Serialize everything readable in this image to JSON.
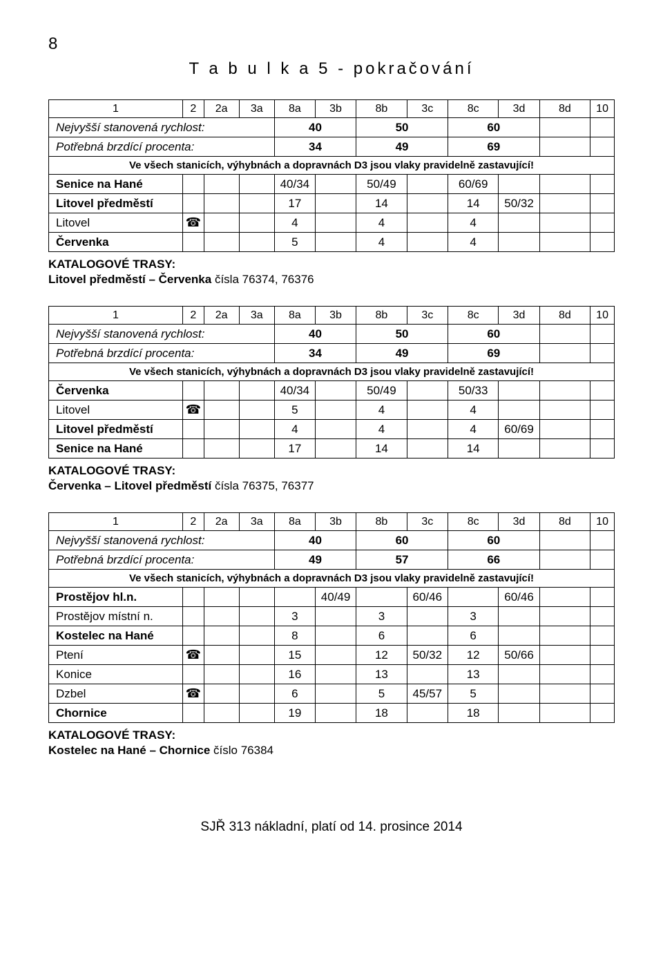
{
  "page_number": "8",
  "page_title": "T a b u l k a  5  -  pokračování",
  "col_headers": [
    "1",
    "2",
    "2a",
    "3a",
    "8a",
    "3b",
    "8b",
    "3c",
    "8c",
    "3d",
    "8d",
    "10"
  ],
  "speed_label": "Nejvyšší stanovená rychlost:",
  "brake_label": "Potřebná brzdící procenta:",
  "note_text": "Ve všech stanicích, výhybnách a dopravnách D3 jsou vlaky pravidelně zastavující!",
  "trasy_heading": "KATALOGOVÉ TRASY:",
  "blocks": [
    {
      "speed": [
        "40",
        "50",
        "60"
      ],
      "brake": [
        "34",
        "49",
        "69"
      ],
      "rows": [
        {
          "name": "Senice na Hané",
          "bold": true,
          "tel": "",
          "c": [
            "",
            "",
            "40/34",
            "",
            "50/49",
            "",
            "60/69",
            "",
            "",
            ""
          ]
        },
        {
          "name": "Litovel předměstí",
          "bold": true,
          "tel": "",
          "c": [
            "",
            "",
            "17",
            "",
            "14",
            "",
            "14",
            "50/32",
            "",
            ""
          ]
        },
        {
          "name": "Litovel",
          "bold": false,
          "tel": "☎",
          "c": [
            "",
            "",
            "4",
            "",
            "4",
            "",
            "4",
            "",
            "",
            ""
          ]
        },
        {
          "name": "Červenka",
          "bold": true,
          "tel": "",
          "c": [
            "",
            "",
            "5",
            "",
            "4",
            "",
            "4",
            "",
            "",
            ""
          ]
        }
      ],
      "trasy": "Litovel předměstí – Červenka čísla 76374, 76376"
    },
    {
      "speed": [
        "40",
        "50",
        "60"
      ],
      "brake": [
        "34",
        "49",
        "69"
      ],
      "rows": [
        {
          "name": "Červenka",
          "bold": true,
          "tel": "",
          "c": [
            "",
            "",
            "40/34",
            "",
            "50/49",
            "",
            "50/33",
            "",
            "",
            ""
          ]
        },
        {
          "name": "Litovel",
          "bold": false,
          "tel": "☎",
          "c": [
            "",
            "",
            "5",
            "",
            "4",
            "",
            "4",
            "",
            "",
            ""
          ]
        },
        {
          "name": "Litovel předměstí",
          "bold": true,
          "tel": "",
          "c": [
            "",
            "",
            "4",
            "",
            "4",
            "",
            "4",
            "60/69",
            "",
            ""
          ]
        },
        {
          "name": "Senice na Hané",
          "bold": true,
          "tel": "",
          "c": [
            "",
            "",
            "17",
            "",
            "14",
            "",
            "14",
            "",
            "",
            ""
          ]
        }
      ],
      "trasy": "Červenka – Litovel předměstí čísla 76375, 76377"
    },
    {
      "speed": [
        "40",
        "60",
        "60"
      ],
      "brake": [
        "49",
        "57",
        "66"
      ],
      "rows": [
        {
          "name": "Prostějov hl.n.",
          "bold": true,
          "tel": "",
          "c": [
            "",
            "",
            "",
            "40/49",
            "",
            "60/46",
            "",
            "60/46",
            "",
            ""
          ]
        },
        {
          "name": "Prostějov místní n.",
          "bold": false,
          "tel": "",
          "c": [
            "",
            "",
            "3",
            "",
            "3",
            "",
            "3",
            "",
            "",
            ""
          ]
        },
        {
          "name": "Kostelec na Hané",
          "bold": true,
          "tel": "",
          "c": [
            "",
            "",
            "8",
            "",
            "6",
            "",
            "6",
            "",
            "",
            ""
          ]
        },
        {
          "name": "Ptení",
          "bold": false,
          "tel": "☎",
          "c": [
            "",
            "",
            "15",
            "",
            "12",
            "50/32",
            "12",
            "50/66",
            "",
            ""
          ]
        },
        {
          "name": "Konice",
          "bold": false,
          "tel": "",
          "c": [
            "",
            "",
            "16",
            "",
            "13",
            "",
            "13",
            "",
            "",
            ""
          ]
        },
        {
          "name": "Dzbel",
          "bold": false,
          "tel": "☎",
          "c": [
            "",
            "",
            "6",
            "",
            "5",
            "45/57",
            "5",
            "",
            "",
            ""
          ]
        },
        {
          "name": "Chornice",
          "bold": true,
          "tel": "",
          "c": [
            "",
            "",
            "19",
            "",
            "18",
            "",
            "18",
            "",
            "",
            ""
          ]
        }
      ],
      "trasy": "Kostelec na Hané – Chornice číslo 76384"
    }
  ],
  "footer": "SJŘ 313 nákladní, platí od 14. prosince 2014"
}
